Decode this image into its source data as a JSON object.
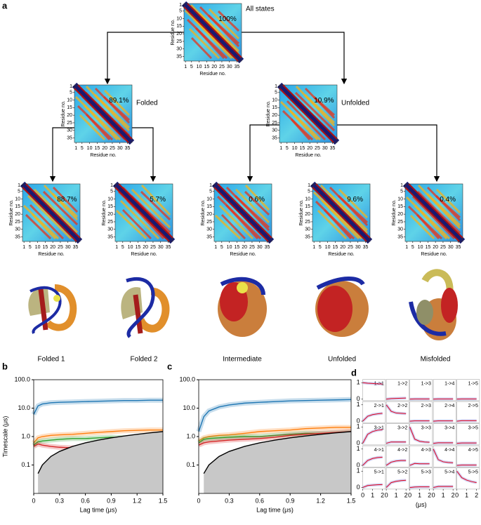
{
  "panel_a": {
    "label": "a",
    "xlabel": "Residue no.",
    "ylabel": "Residue no.",
    "lim": [
      0,
      38
    ],
    "xticks": [
      1,
      5,
      10,
      15,
      20,
      25,
      30,
      35
    ],
    "yticks": [
      1,
      5,
      10,
      15,
      20,
      25,
      30,
      35
    ],
    "maps": [
      {
        "title": "All states",
        "percent": "100%"
      },
      {
        "title": "Folded",
        "percent": "89.1%"
      },
      {
        "title": "Unfolded",
        "percent": "10.9%"
      },
      {
        "percent": "88.7%"
      },
      {
        "percent": "5.7%"
      },
      {
        "percent": "0.6%"
      },
      {
        "percent": "9.6%"
      },
      {
        "percent": "0.4%"
      }
    ],
    "structures": [
      "Folded 1",
      "Folded 2",
      "Intermediate",
      "Unfolded",
      "Misfolded"
    ]
  },
  "chart_data": [
    {
      "type": "line",
      "label": "b",
      "xlabel": "Lag time (μs)",
      "ylabel": "Timescale (μs)",
      "log_y": true,
      "x": [
        0,
        0.05,
        0.1,
        0.2,
        0.3,
        0.45,
        0.6,
        0.75,
        0.9,
        1.05,
        1.2,
        1.35,
        1.5
      ],
      "xlim": [
        0,
        1.5
      ],
      "xticks": [
        0,
        0.3,
        0.6,
        0.9,
        1.2,
        1.5
      ],
      "ylim": [
        0.01,
        100
      ],
      "yticks": [
        0.1,
        {
          "value": 1,
          "label": "1.0"
        },
        {
          "value": 10,
          "label": "10.0"
        },
        {
          "value": 100,
          "label": "100.0"
        }
      ],
      "series": [
        {
          "color": "#1f77b4",
          "values": [
            6,
            12,
            14,
            15.5,
            16,
            16.5,
            17,
            17.5,
            18,
            18.5,
            18.5,
            19,
            19
          ]
        },
        {
          "color": "#ff7f0e",
          "values": [
            0.6,
            0.9,
            1.0,
            1.1,
            1.15,
            1.2,
            1.3,
            1.4,
            1.5,
            1.6,
            1.65,
            1.7,
            1.7
          ]
        },
        {
          "color": "#2ca02c",
          "values": [
            0.5,
            0.65,
            0.7,
            0.75,
            0.8,
            0.85,
            0.85,
            0.9,
            0.95,
            0.9,
            0.85,
            0.85,
            0.85
          ]
        },
        {
          "color": "#d62728",
          "values": [
            0.45,
            0.55,
            0.5,
            0.45,
            0.42,
            0.4,
            0.4,
            0.42,
            0.45,
            0.5,
            0.5,
            0.55,
            0.6
          ]
        },
        {
          "color": "#000000",
          "fill": "#c8c8c8",
          "values": [
            null,
            0.05,
            0.1,
            0.2,
            0.3,
            0.45,
            0.6,
            0.75,
            0.9,
            1.05,
            1.2,
            1.35,
            1.5
          ]
        }
      ]
    },
    {
      "type": "line",
      "label": "c",
      "xlabel": "Lag time (μs)",
      "log_y": true,
      "x": [
        0,
        0.05,
        0.1,
        0.2,
        0.3,
        0.45,
        0.6,
        0.75,
        0.9,
        1.05,
        1.2,
        1.35,
        1.5
      ],
      "xlim": [
        0,
        1.5
      ],
      "xticks": [
        0,
        0.3,
        0.6,
        0.9,
        1.2,
        1.5
      ],
      "ylim": [
        0.01,
        100
      ],
      "yticks": [
        0.1,
        {
          "value": 1,
          "label": "1.0"
        },
        {
          "value": 10,
          "label": "10.0"
        },
        {
          "value": 100,
          "label": "100.0"
        }
      ],
      "series": [
        {
          "color": "#1f77b4",
          "values": [
            1.5,
            5,
            8,
            11,
            13,
            15,
            16,
            17,
            18,
            18.5,
            19,
            19.5,
            20
          ]
        },
        {
          "color": "#ff7f0e",
          "values": [
            0.7,
            0.9,
            1.0,
            1.1,
            1.15,
            1.3,
            1.5,
            1.6,
            1.7,
            1.9,
            2.0,
            2.1,
            2.1
          ]
        },
        {
          "color": "#2ca02c",
          "values": [
            0.6,
            0.8,
            0.85,
            0.9,
            0.95,
            1.0,
            1.0,
            1.1,
            1.2,
            1.3,
            1.3,
            1.35,
            1.4
          ]
        },
        {
          "color": "#d62728",
          "values": [
            0.5,
            0.6,
            0.65,
            0.7,
            0.75,
            0.8,
            0.85,
            0.95,
            1.1,
            1.2,
            1.3,
            1.4,
            1.5
          ]
        },
        {
          "color": "#000000",
          "fill": "#c8c8c8",
          "values": [
            null,
            0.05,
            0.1,
            0.2,
            0.3,
            0.45,
            0.6,
            0.75,
            0.9,
            1.05,
            1.2,
            1.35,
            1.5
          ]
        }
      ]
    },
    {
      "type": "small-multiples",
      "label": "d",
      "xlabel": "(μs)",
      "color": "#e0001b",
      "x": [
        0,
        0.5,
        1,
        1.5,
        2
      ],
      "xlim": [
        0,
        2.3
      ],
      "xticks": [
        0,
        1,
        2
      ],
      "ylim": [
        -0.1,
        1.2
      ],
      "yticks": [
        0,
        1
      ],
      "columns": 5,
      "panels": [
        {
          "title": "1->1",
          "values": [
            1,
            0.97,
            0.95,
            0.93,
            0.92
          ]
        },
        {
          "title": "1->2",
          "values": [
            0,
            0.03,
            0.04,
            0.05,
            0.06
          ]
        },
        {
          "title": "1->3",
          "values": [
            0,
            0.01,
            0.01,
            0.01,
            0.01
          ]
        },
        {
          "title": "1->4",
          "values": [
            0,
            0.01,
            0.01,
            0.01,
            0.01
          ]
        },
        {
          "title": "1->5",
          "values": [
            0,
            0.01,
            0.01,
            0.01,
            0.01
          ]
        },
        {
          "title": "2->1",
          "values": [
            0,
            0.3,
            0.4,
            0.45,
            0.48
          ]
        },
        {
          "title": "2->2",
          "values": [
            1,
            0.6,
            0.5,
            0.48,
            0.46
          ]
        },
        {
          "title": "2->3",
          "values": [
            0,
            0.02,
            0.02,
            0.02,
            0.02
          ]
        },
        {
          "title": "2->4",
          "values": [
            0,
            0.02,
            0.02,
            0.02,
            0.02
          ]
        },
        {
          "title": "2->5",
          "values": [
            0,
            0.03,
            0.03,
            0.03,
            0.03
          ]
        },
        {
          "title": "3->1",
          "values": [
            0,
            0.55,
            0.72,
            0.8,
            0.83
          ]
        },
        {
          "title": "3->2",
          "values": [
            0,
            0.08,
            0.08,
            0.08,
            0.08
          ]
        },
        {
          "title": "3->3",
          "values": [
            1,
            0.25,
            0.12,
            0.08,
            0.06
          ]
        },
        {
          "title": "3->4",
          "values": [
            0,
            0.03,
            0.03,
            0.03,
            0.03
          ]
        },
        {
          "title": "3->5",
          "values": [
            0,
            0.02,
            0.02,
            0.02,
            0.02
          ]
        },
        {
          "title": "4->1",
          "values": [
            0,
            0.3,
            0.42,
            0.48,
            0.5
          ]
        },
        {
          "title": "4->2",
          "values": [
            0,
            0.2,
            0.27,
            0.3,
            0.3
          ]
        },
        {
          "title": "4->3",
          "values": [
            0,
            0.12,
            0.1,
            0.1,
            0.1
          ]
        },
        {
          "title": "4->4",
          "values": [
            1,
            0.35,
            0.22,
            0.18,
            0.16
          ]
        },
        {
          "title": "4->5",
          "values": [
            0,
            0.02,
            0.02,
            0.02,
            0.02
          ]
        },
        {
          "title": "5->1",
          "values": [
            0,
            0.12,
            0.15,
            0.17,
            0.18
          ]
        },
        {
          "title": "5->2",
          "values": [
            0,
            0.3,
            0.38,
            0.42,
            0.44
          ]
        },
        {
          "title": "5->3",
          "values": [
            0,
            0.03,
            0.04,
            0.04,
            0.04
          ]
        },
        {
          "title": "5->4",
          "values": [
            0,
            0.06,
            0.06,
            0.06,
            0.06
          ]
        },
        {
          "title": "5->5",
          "values": [
            1,
            0.6,
            0.45,
            0.36,
            0.3
          ]
        }
      ]
    }
  ]
}
